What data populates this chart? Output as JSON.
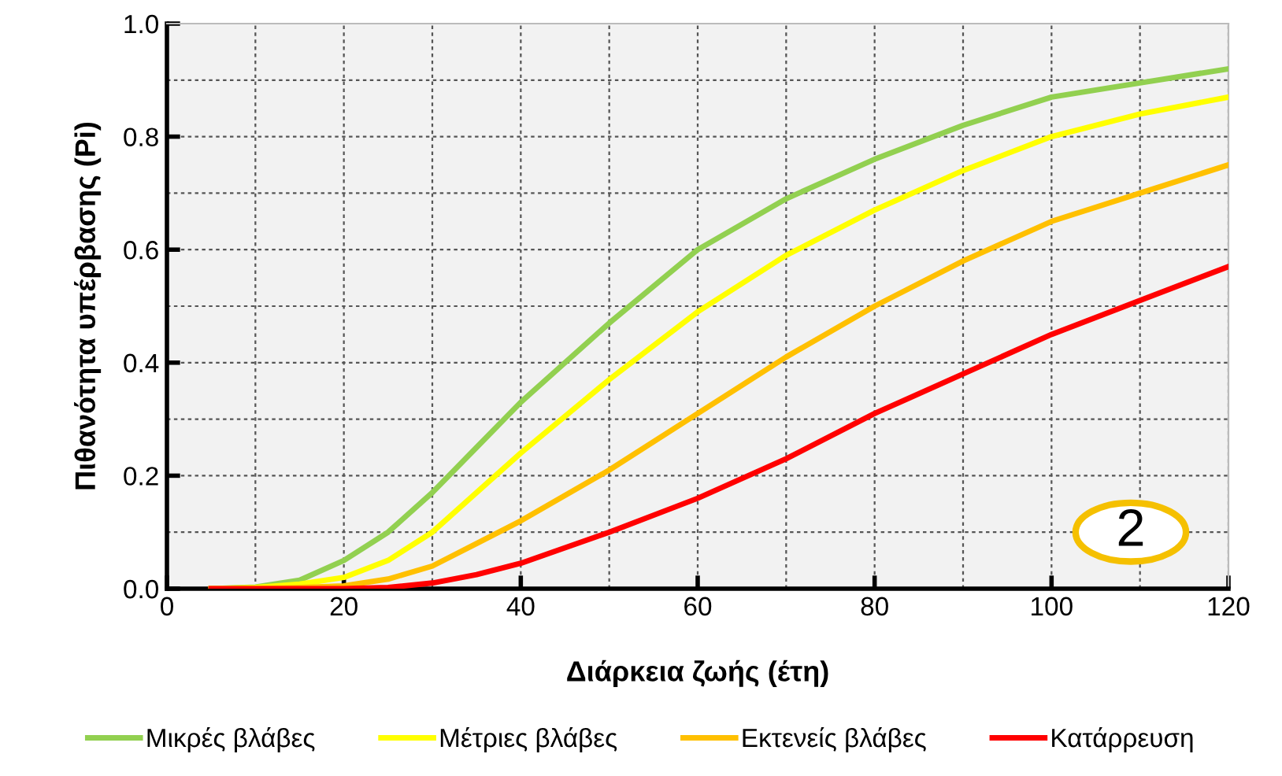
{
  "chart_data": {
    "type": "line",
    "xlabel": "Διάρκεια ζωής (έτη)",
    "ylabel": "Πιθανότητα υπέρβασης (Pi)",
    "x": [
      5,
      10,
      15,
      20,
      25,
      30,
      35,
      40,
      50,
      60,
      70,
      80,
      90,
      100,
      110,
      120
    ],
    "series": [
      {
        "name": "Μικρές βλάβες",
        "color": "#92d050",
        "values": [
          0,
          0.003,
          0.015,
          0.05,
          0.1,
          0.17,
          0.25,
          0.33,
          0.47,
          0.6,
          0.69,
          0.76,
          0.82,
          0.87,
          0.895,
          0.92
        ]
      },
      {
        "name": "Μέτριες βλάβες",
        "color": "#ffff00",
        "values": [
          0,
          0.002,
          0.008,
          0.02,
          0.05,
          0.1,
          0.17,
          0.24,
          0.37,
          0.49,
          0.59,
          0.67,
          0.74,
          0.8,
          0.84,
          0.87
        ]
      },
      {
        "name": "Εκτενείς βλάβες",
        "color": "#ffc000",
        "values": [
          0,
          0,
          0.002,
          0.005,
          0.017,
          0.04,
          0.08,
          0.12,
          0.21,
          0.31,
          0.41,
          0.5,
          0.58,
          0.65,
          0.7,
          0.75
        ]
      },
      {
        "name": "Κατάρρευση",
        "color": "#ff0000",
        "values": [
          0,
          0,
          0,
          0,
          0.002,
          0.01,
          0.025,
          0.045,
          0.1,
          0.16,
          0.23,
          0.31,
          0.38,
          0.45,
          0.51,
          0.57
        ]
      }
    ],
    "xlim": [
      0,
      120
    ],
    "xticks": [
      0,
      20,
      40,
      60,
      80,
      100,
      120
    ],
    "ylim": [
      0,
      1
    ],
    "yticks": [
      {
        "value": 0,
        "label": "0.0"
      },
      {
        "value": 0.2,
        "label": "0.2"
      },
      {
        "value": 0.4,
        "label": "0.4"
      },
      {
        "value": 0.6,
        "label": "0.6"
      },
      {
        "value": 0.8,
        "label": "0.8"
      },
      {
        "value": 1,
        "label": "1.0"
      }
    ],
    "grid": true,
    "legend": "bottom",
    "marker": "none",
    "line_style": "solid",
    "annotations": [
      "2"
    ]
  }
}
